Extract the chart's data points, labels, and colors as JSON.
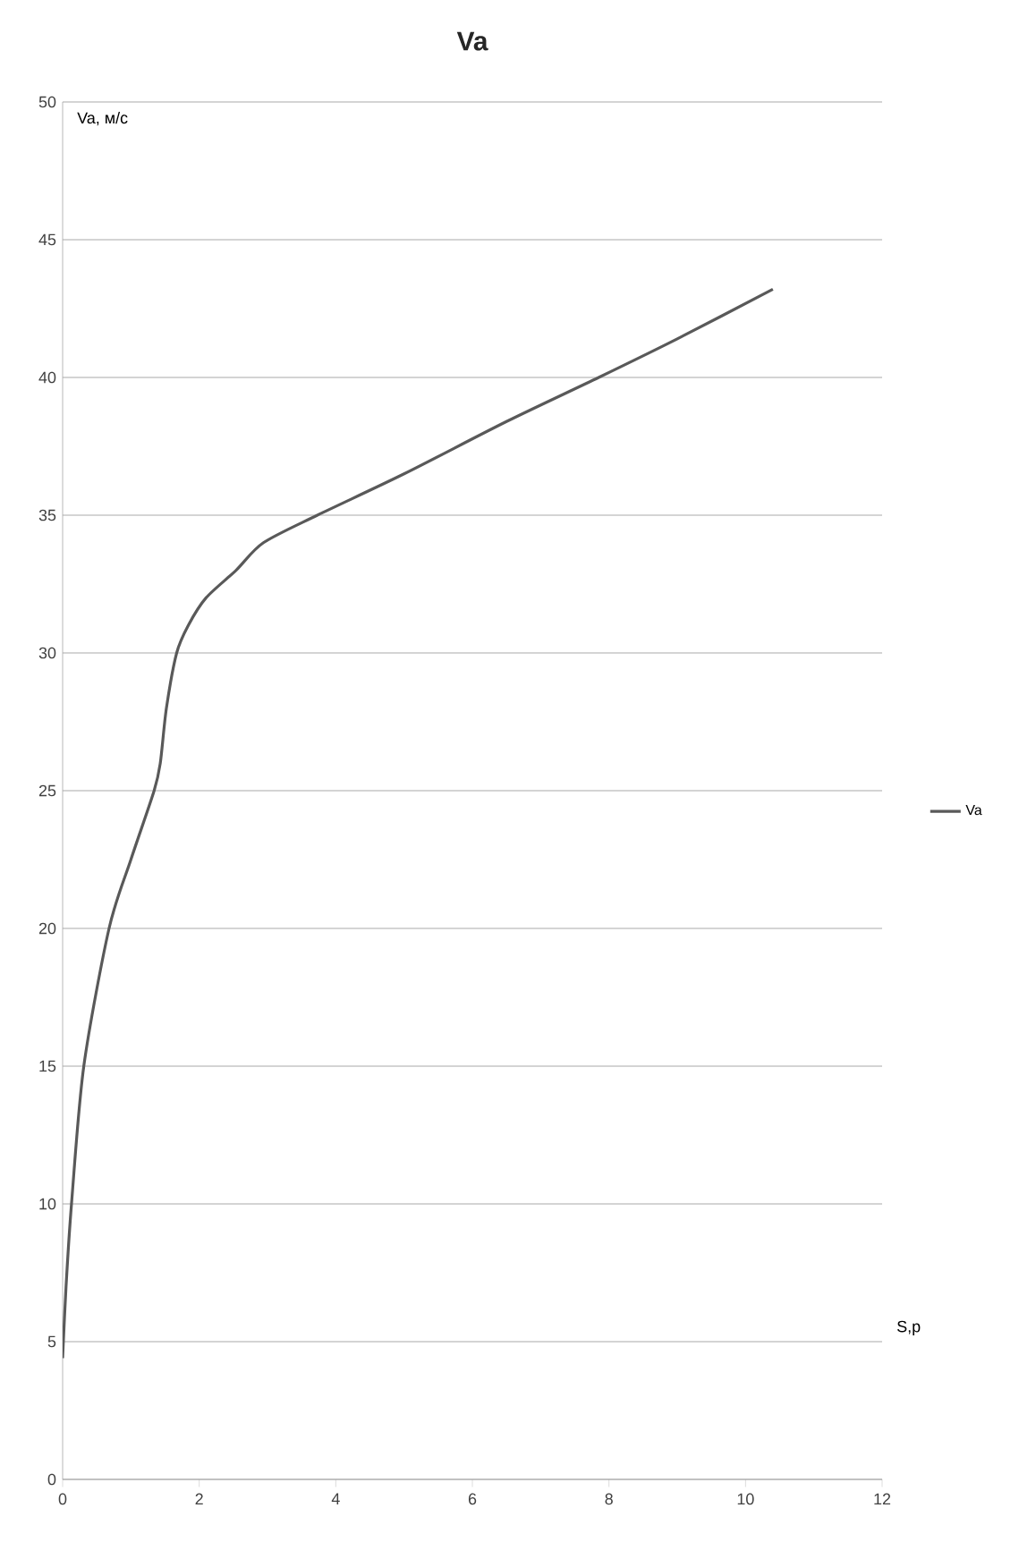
{
  "chart_data": {
    "type": "line",
    "title": "Va",
    "xlabel": "S,p",
    "ylabel": "Va, м/с",
    "x": [
      0,
      0.05,
      0.13,
      0.31,
      0.68,
      1.0,
      1.34,
      1.43,
      1.52,
      1.67,
      1.84,
      2.1,
      2.54,
      2.94,
      3.73,
      5.0,
      6.5,
      7.85,
      9.0,
      10.4
    ],
    "series": [
      {
        "name": "Va",
        "color": "#595959",
        "values": [
          4.4,
          7,
          10,
          15,
          20,
          22.5,
          25,
          26,
          28,
          30,
          31,
          32,
          33,
          34,
          35,
          36.5,
          38.4,
          40,
          41.4,
          43.2
        ]
      }
    ],
    "xlim": [
      0,
      12
    ],
    "ylim": [
      0,
      50
    ],
    "xticks": [
      0,
      2,
      4,
      6,
      8,
      10,
      12
    ],
    "yticks": [
      0,
      5,
      10,
      15,
      20,
      25,
      30,
      35,
      40,
      45,
      50
    ],
    "grid": "y",
    "legend": "right"
  }
}
